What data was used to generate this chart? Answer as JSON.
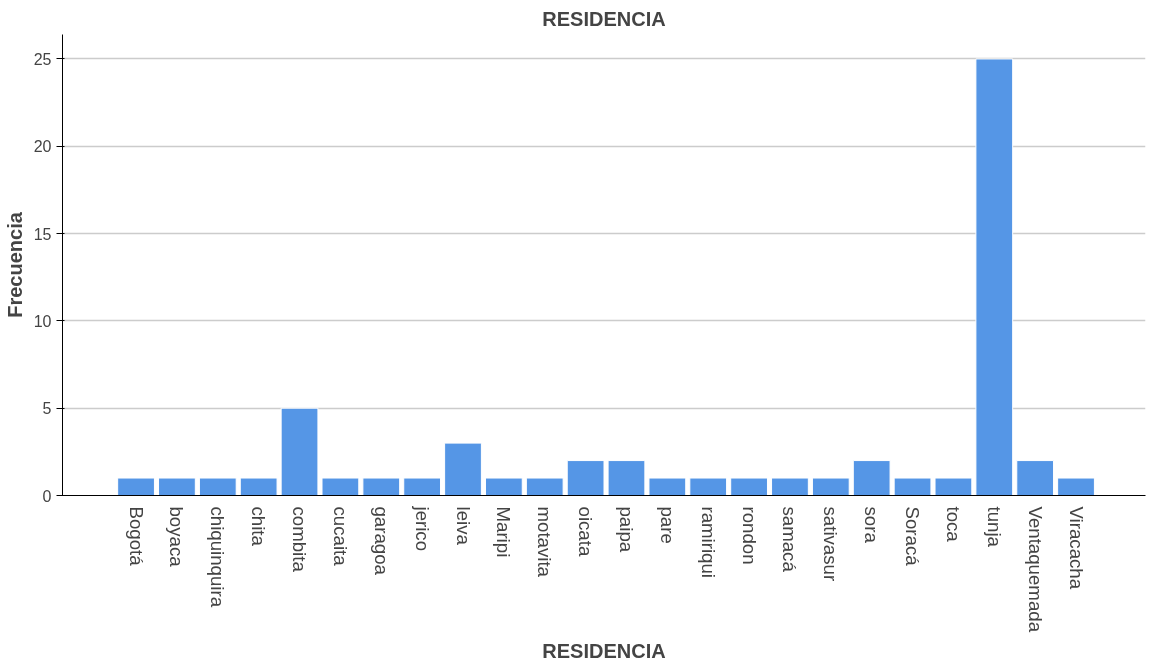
{
  "chart_data": {
    "type": "bar",
    "title": "RESIDENCIA",
    "xlabel": "RESIDENCIA",
    "ylabel": "Frecuencia",
    "categories": [
      "Bogotá",
      "boyaca",
      "chiquinquira",
      "chita",
      "combita",
      "cucaita",
      "garagoa",
      "jerico",
      "leiva",
      "Maripi",
      "motavita",
      "oicata",
      "paipa",
      "pare",
      "ramiriqui",
      "rondon",
      "samacá",
      "sativasur",
      "sora",
      "Soracá",
      "toca",
      "tunja",
      "Ventaquemada",
      "Viracacha"
    ],
    "values": [
      1,
      1,
      1,
      1,
      5,
      1,
      1,
      1,
      3,
      1,
      1,
      2,
      2,
      1,
      1,
      1,
      1,
      1,
      2,
      1,
      1,
      25,
      2,
      1
    ],
    "color": "#5596e6",
    "ylim": [
      0,
      26.4
    ],
    "yticks": [
      0,
      5,
      10,
      15,
      20,
      25
    ],
    "grid": "y"
  }
}
